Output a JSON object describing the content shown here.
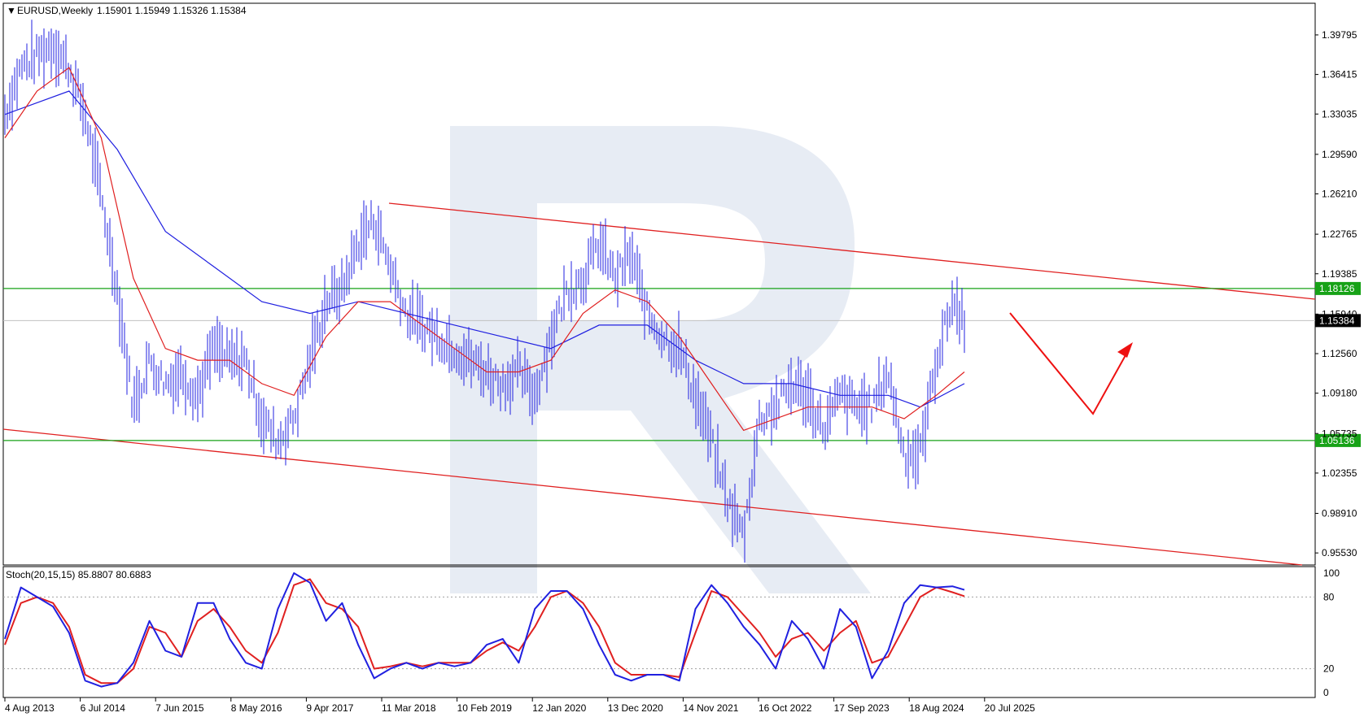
{
  "header": {
    "title": "EURUSD,Weekly",
    "ohlc": "1.15901 1.15949 1.15326 1.15384",
    "indicator": "Stoch(20,15,15) 85.8807 80.6883"
  },
  "colors": {
    "candles": "#2020e0",
    "ma_slow": "#2020e0",
    "ma_fast": "#e02020",
    "channel": "#e02020",
    "levels": "#17a217",
    "watermark": "#dfe5f0"
  },
  "chart_data": [
    {
      "type": "line",
      "title": "EURUSD,Weekly",
      "y_ticks": [
        "1.39795",
        "1.36415",
        "1.33035",
        "1.29590",
        "1.26210",
        "1.22765",
        "1.19385",
        "1.15940",
        "1.12560",
        "1.09180",
        "1.05735",
        "1.02355",
        "0.98910",
        "0.95530"
      ],
      "ylim": [
        0.945,
        1.425
      ],
      "x_ticks": [
        "4 Aug 2013",
        "6 Jul 2014",
        "7 Jun 2015",
        "8 May 2016",
        "9 Apr 2017",
        "11 Mar 2018",
        "10 Feb 2019",
        "12 Jan 2020",
        "13 Dec 2020",
        "14 Nov 2021",
        "16 Oct 2022",
        "17 Sep 2023",
        "18 Aug 2024",
        "20 Jul 2025"
      ],
      "x_range": [
        "4 Aug 2013",
        "20 Jul 2025"
      ],
      "levels": [
        {
          "label": "1.18126",
          "value": 1.18126
        },
        {
          "label": "1.05136",
          "value": 1.05136
        }
      ],
      "current_price": {
        "label": "1.15384",
        "value": 1.15384
      },
      "series": [
        {
          "kind": "candles",
          "x": [
            2013.6,
            2013.8,
            2014.0,
            2014.2,
            2014.4,
            2014.6,
            2014.8,
            2015.0,
            2015.2,
            2015.4,
            2015.6,
            2015.8,
            2016.0,
            2016.2,
            2016.4,
            2016.6,
            2016.8,
            2017.0,
            2017.2,
            2017.4,
            2017.6,
            2017.8,
            2018.0,
            2018.2,
            2018.4,
            2018.6,
            2018.8,
            2019.0,
            2019.2,
            2019.4,
            2019.6,
            2019.8,
            2020.0,
            2020.2,
            2020.4,
            2020.6,
            2020.8,
            2021.0,
            2021.2,
            2021.4,
            2021.6,
            2021.8,
            2022.0,
            2022.2,
            2022.4,
            2022.6,
            2022.8,
            2023.0,
            2023.2,
            2023.4,
            2023.6,
            2023.8,
            2024.0,
            2024.2,
            2024.4,
            2024.6,
            2024.8,
            2025.0,
            2025.2,
            2025.4,
            2025.55
          ],
          "y": [
            1.33,
            1.37,
            1.38,
            1.39,
            1.37,
            1.33,
            1.26,
            1.18,
            1.08,
            1.12,
            1.1,
            1.11,
            1.09,
            1.13,
            1.12,
            1.12,
            1.07,
            1.05,
            1.07,
            1.12,
            1.17,
            1.18,
            1.22,
            1.24,
            1.2,
            1.16,
            1.15,
            1.14,
            1.13,
            1.12,
            1.11,
            1.1,
            1.11,
            1.09,
            1.14,
            1.18,
            1.19,
            1.22,
            1.19,
            1.21,
            1.16,
            1.14,
            1.13,
            1.09,
            1.05,
            1.0,
            0.97,
            1.07,
            1.08,
            1.1,
            1.09,
            1.06,
            1.09,
            1.08,
            1.08,
            1.11,
            1.04,
            1.04,
            1.12,
            1.17,
            1.15384
          ]
        },
        {
          "kind": "ma_fast",
          "x": [
            2013.6,
            2014.0,
            2014.4,
            2014.8,
            2015.2,
            2015.6,
            2016.0,
            2016.4,
            2016.8,
            2017.2,
            2017.6,
            2018.0,
            2018.4,
            2018.8,
            2019.2,
            2019.6,
            2020.0,
            2020.4,
            2020.8,
            2021.2,
            2021.6,
            2022.0,
            2022.4,
            2022.8,
            2023.2,
            2023.6,
            2024.0,
            2024.4,
            2024.8,
            2025.2,
            2025.55
          ],
          "y": [
            1.31,
            1.35,
            1.37,
            1.31,
            1.19,
            1.13,
            1.12,
            1.12,
            1.1,
            1.09,
            1.14,
            1.17,
            1.17,
            1.15,
            1.13,
            1.11,
            1.11,
            1.12,
            1.16,
            1.18,
            1.17,
            1.14,
            1.1,
            1.06,
            1.07,
            1.08,
            1.08,
            1.08,
            1.07,
            1.09,
            1.11
          ]
        },
        {
          "kind": "ma_slow",
          "x": [
            2013.6,
            2014.4,
            2015.0,
            2015.6,
            2016.2,
            2016.8,
            2017.4,
            2018.0,
            2018.6,
            2019.2,
            2019.8,
            2020.4,
            2021.0,
            2021.6,
            2022.2,
            2022.8,
            2023.4,
            2024.0,
            2024.6,
            2025.0,
            2025.55
          ],
          "y": [
            1.33,
            1.35,
            1.3,
            1.23,
            1.2,
            1.17,
            1.16,
            1.17,
            1.16,
            1.15,
            1.14,
            1.13,
            1.15,
            1.15,
            1.12,
            1.1,
            1.1,
            1.09,
            1.09,
            1.08,
            1.1
          ]
        }
      ]
    },
    {
      "type": "line",
      "title": "Stoch(20,15,15) 85.8807 80.6883",
      "y_ticks": [
        "100",
        "80",
        "20",
        "0"
      ],
      "ylim": [
        0,
        100
      ],
      "levels": [
        80,
        20
      ],
      "series": [
        {
          "name": "main",
          "x": [
            2013.6,
            2013.8,
            2014.0,
            2014.2,
            2014.4,
            2014.6,
            2014.8,
            2015.0,
            2015.2,
            2015.4,
            2015.6,
            2015.8,
            2016.0,
            2016.2,
            2016.4,
            2016.6,
            2016.8,
            2017.0,
            2017.2,
            2017.4,
            2017.6,
            2017.8,
            2018.0,
            2018.2,
            2018.4,
            2018.6,
            2018.8,
            2019.0,
            2019.2,
            2019.4,
            2019.6,
            2019.8,
            2020.0,
            2020.2,
            2020.4,
            2020.6,
            2020.8,
            2021.0,
            2021.2,
            2021.4,
            2021.6,
            2021.8,
            2022.0,
            2022.2,
            2022.4,
            2022.6,
            2022.8,
            2023.0,
            2023.2,
            2023.4,
            2023.6,
            2023.8,
            2024.0,
            2024.2,
            2024.4,
            2024.6,
            2024.8,
            2025.0,
            2025.2,
            2025.4,
            2025.55
          ],
          "y": [
            45,
            88,
            80,
            72,
            50,
            10,
            5,
            8,
            25,
            60,
            35,
            30,
            75,
            75,
            45,
            25,
            20,
            70,
            100,
            92,
            60,
            75,
            40,
            12,
            20,
            25,
            20,
            25,
            22,
            25,
            40,
            45,
            25,
            70,
            85,
            85,
            70,
            40,
            15,
            10,
            15,
            15,
            10,
            70,
            90,
            75,
            55,
            40,
            20,
            60,
            45,
            20,
            70,
            55,
            12,
            35,
            75,
            90,
            88,
            89,
            86
          ]
        },
        {
          "name": "signal",
          "x": [
            2013.6,
            2013.8,
            2014.0,
            2014.2,
            2014.4,
            2014.6,
            2014.8,
            2015.0,
            2015.2,
            2015.4,
            2015.6,
            2015.8,
            2016.0,
            2016.2,
            2016.4,
            2016.6,
            2016.8,
            2017.0,
            2017.2,
            2017.4,
            2017.6,
            2017.8,
            2018.0,
            2018.2,
            2018.4,
            2018.6,
            2018.8,
            2019.0,
            2019.2,
            2019.4,
            2019.6,
            2019.8,
            2020.0,
            2020.2,
            2020.4,
            2020.6,
            2020.8,
            2021.0,
            2021.2,
            2021.4,
            2021.6,
            2021.8,
            2022.0,
            2022.2,
            2022.4,
            2022.6,
            2022.8,
            2023.0,
            2023.2,
            2023.4,
            2023.6,
            2023.8,
            2024.0,
            2024.2,
            2024.4,
            2024.6,
            2024.8,
            2025.0,
            2025.2,
            2025.4,
            2025.55
          ],
          "y": [
            40,
            75,
            80,
            75,
            55,
            15,
            8,
            8,
            20,
            55,
            50,
            30,
            60,
            70,
            55,
            35,
            25,
            50,
            90,
            95,
            75,
            70,
            55,
            20,
            22,
            25,
            22,
            25,
            25,
            25,
            35,
            42,
            35,
            55,
            80,
            85,
            75,
            55,
            25,
            15,
            15,
            15,
            13,
            50,
            85,
            80,
            65,
            50,
            30,
            45,
            50,
            35,
            50,
            60,
            25,
            30,
            55,
            80,
            88,
            84,
            80.7
          ]
        }
      ]
    }
  ]
}
